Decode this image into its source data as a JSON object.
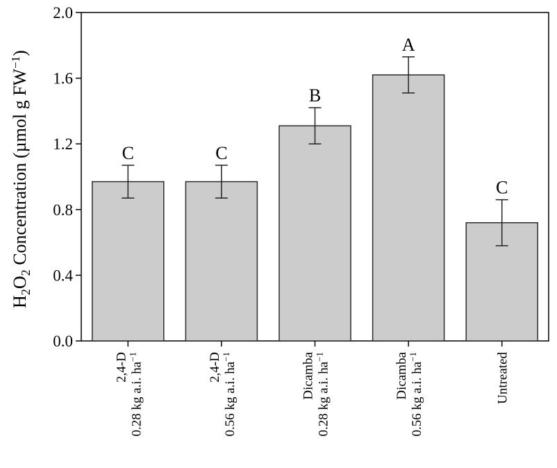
{
  "chart_data": {
    "type": "bar",
    "ylabel": {
      "base": "H",
      "sub1": "2",
      "mid": "O",
      "sub2": "2",
      "rest": " Concentration (µmol g FW",
      "sup": "−1",
      "close": ")"
    },
    "ylim": [
      0,
      2.0
    ],
    "yticks": [
      "0.0",
      "0.4",
      "0.8",
      "1.2",
      "1.6",
      "2.0"
    ],
    "grid": false,
    "categories": [
      {
        "line1": "2,4-D",
        "line2": "0.28 kg a.i. ha",
        "sup": "−1"
      },
      {
        "line1": "2,4-D",
        "line2": "0.56 kg a.i. ha",
        "sup": "−1"
      },
      {
        "line1": "Dicamba",
        "line2": "0.28 kg a.i. ha",
        "sup": "−1"
      },
      {
        "line1": "Dicamba",
        "line2": "0.56 kg a.i. ha",
        "sup": "−1"
      },
      {
        "line1": "",
        "line2": "Untreated",
        "sup": ""
      }
    ],
    "values": [
      0.97,
      0.97,
      1.31,
      1.62,
      0.72
    ],
    "errors": [
      0.1,
      0.1,
      0.11,
      0.11,
      0.14
    ],
    "significance": [
      "C",
      "C",
      "B",
      "A",
      "C"
    ],
    "colors": {
      "bar": "#cccccc",
      "edge": "#2b2b2b",
      "axis": "#000000"
    }
  }
}
